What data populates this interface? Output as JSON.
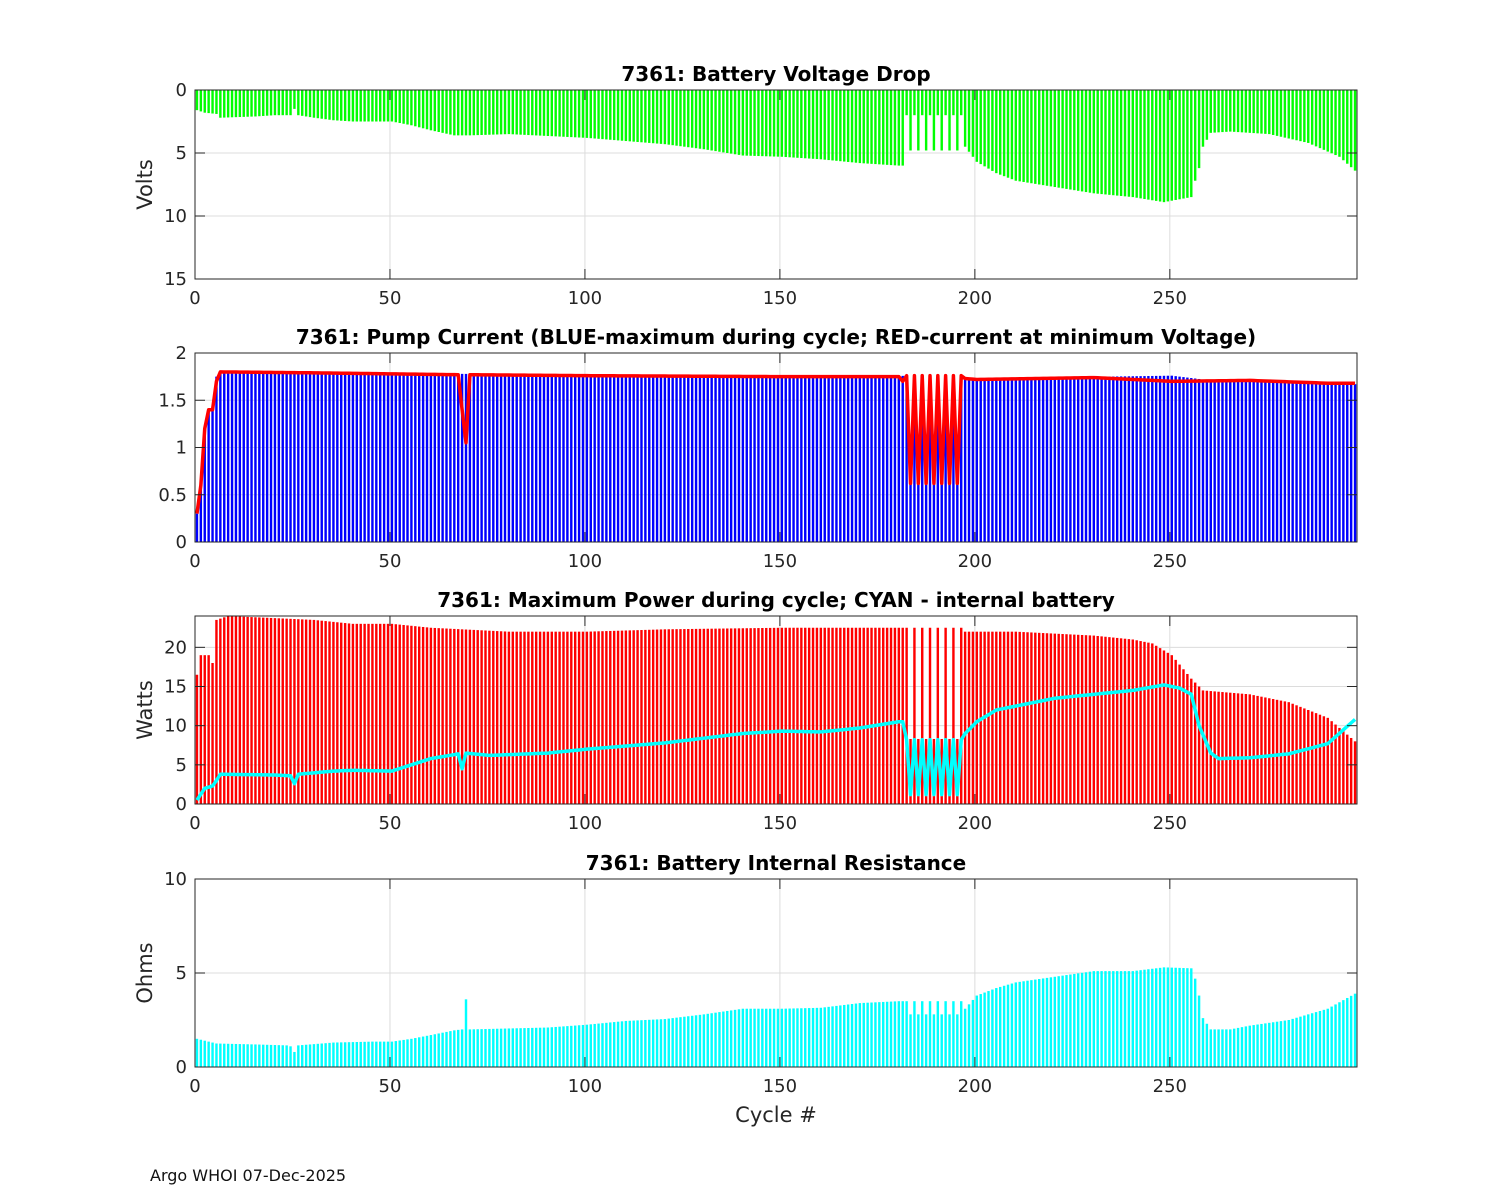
{
  "figure": {
    "footer": "Argo WHOI 07-Dec-2025",
    "xlabel": "Cycle #"
  },
  "colors": {
    "green": "#00ff00",
    "blue": "#0000ff",
    "red": "#ff0000",
    "cyan": "#00ffff"
  },
  "chart_data": [
    {
      "type": "bar",
      "title": "7361: Battery Voltage Drop",
      "ylabel": "Volts",
      "xlabel": "",
      "xlim": [
        0,
        298
      ],
      "ylim": [
        0,
        15
      ],
      "y_reversed": true,
      "xticks": [
        0,
        50,
        100,
        150,
        200,
        250
      ],
      "yticks": [
        0,
        5,
        10,
        15
      ],
      "grid": true,
      "bar_color": "#00ff00",
      "series_keypoints": {
        "name": "Voltage drop",
        "points": [
          [
            0,
            1.6
          ],
          [
            2,
            1.8
          ],
          [
            5,
            1.9
          ],
          [
            6,
            2.2
          ],
          [
            15,
            2.1
          ],
          [
            20,
            2.0
          ],
          [
            24,
            2.0
          ],
          [
            25,
            1.5
          ],
          [
            26,
            2.0
          ],
          [
            30,
            2.2
          ],
          [
            35,
            2.4
          ],
          [
            40,
            2.5
          ],
          [
            50,
            2.5
          ],
          [
            55,
            2.8
          ],
          [
            60,
            3.2
          ],
          [
            66,
            3.6
          ],
          [
            70,
            3.6
          ],
          [
            80,
            3.5
          ],
          [
            100,
            3.8
          ],
          [
            120,
            4.3
          ],
          [
            130,
            4.7
          ],
          [
            140,
            5.2
          ],
          [
            150,
            5.3
          ],
          [
            160,
            5.5
          ],
          [
            170,
            5.8
          ],
          [
            180,
            6.0
          ],
          [
            181,
            6.0
          ],
          [
            196,
            6.0
          ],
          [
            197,
            4.5
          ],
          [
            200,
            5.7
          ],
          [
            205,
            6.6
          ],
          [
            210,
            7.2
          ],
          [
            220,
            7.7
          ],
          [
            230,
            8.2
          ],
          [
            240,
            8.5
          ],
          [
            248,
            8.9
          ],
          [
            255,
            8.5
          ],
          [
            256,
            7.2
          ],
          [
            257,
            6.2
          ],
          [
            258,
            4.5
          ],
          [
            260,
            3.4
          ],
          [
            265,
            3.3
          ],
          [
            275,
            3.5
          ],
          [
            285,
            4.2
          ],
          [
            293,
            5.3
          ],
          [
            297,
            6.4
          ]
        ]
      },
      "anomalies": "cycles 182-196 alternate between about 2.0 and 4.8 V"
    },
    {
      "type": "bar+line",
      "title": "7361: Pump Current (BLUE-maximum during cycle; RED-current at minimum Voltage)",
      "ylabel": "",
      "xlabel": "",
      "xlim": [
        0,
        298
      ],
      "ylim": [
        0,
        2
      ],
      "xticks": [
        0,
        50,
        100,
        150,
        200,
        250
      ],
      "yticks": [
        0,
        0.5,
        1,
        1.5,
        2
      ],
      "grid": true,
      "series": [
        {
          "name": "maximum during cycle",
          "type": "bar",
          "color": "#0000ff",
          "keypoints": [
            [
              0,
              0.3
            ],
            [
              1,
              0.6
            ],
            [
              2,
              1.2
            ],
            [
              3,
              1.4
            ],
            [
              4,
              1.4
            ],
            [
              5,
              1.75
            ],
            [
              6,
              1.8
            ],
            [
              30,
              1.79
            ],
            [
              100,
              1.77
            ],
            [
              150,
              1.76
            ],
            [
              180,
              1.76
            ],
            [
              195,
              1.73
            ],
            [
              200,
              1.73
            ],
            [
              250,
              1.76
            ],
            [
              260,
              1.71
            ],
            [
              297,
              1.67
            ]
          ]
        },
        {
          "name": "current at minimum Voltage",
          "type": "line",
          "color": "#ff0000",
          "keypoints": [
            [
              0,
              0.3
            ],
            [
              1,
              0.6
            ],
            [
              2,
              1.2
            ],
            [
              3,
              1.4
            ],
            [
              4,
              1.4
            ],
            [
              5,
              1.7
            ],
            [
              6,
              1.8
            ],
            [
              30,
              1.79
            ],
            [
              67,
              1.77
            ],
            [
              68,
              1.4
            ],
            [
              69,
              1.05
            ],
            [
              70,
              1.77
            ],
            [
              100,
              1.76
            ],
            [
              150,
              1.75
            ],
            [
              180,
              1.75
            ],
            [
              181,
              1.7
            ],
            [
              196,
              1.7
            ],
            [
              197,
              1.73
            ],
            [
              200,
              1.72
            ],
            [
              230,
              1.74
            ],
            [
              250,
              1.7
            ],
            [
              270,
              1.71
            ],
            [
              290,
              1.68
            ],
            [
              297,
              1.68
            ]
          ]
        }
      ],
      "anomalies": "cycles 182-196 oscillate between about 0.6 and 1.76 A"
    },
    {
      "type": "bar+line",
      "title": "7361: Maximum Power during cycle; CYAN - internal battery",
      "ylabel": "Watts",
      "xlabel": "",
      "xlim": [
        0,
        298
      ],
      "ylim": [
        0,
        24
      ],
      "xticks": [
        0,
        50,
        100,
        150,
        200,
        250
      ],
      "yticks": [
        0,
        5,
        10,
        15,
        20
      ],
      "grid": true,
      "series": [
        {
          "name": "Maximum Power",
          "type": "bar",
          "color": "#ff0000",
          "keypoints": [
            [
              0,
              16.5
            ],
            [
              1,
              19
            ],
            [
              3,
              19
            ],
            [
              4,
              18
            ],
            [
              5,
              23.5
            ],
            [
              8,
              24
            ],
            [
              30,
              23.5
            ],
            [
              40,
              23
            ],
            [
              50,
              23
            ],
            [
              60,
              22.5
            ],
            [
              80,
              22
            ],
            [
              100,
              22
            ],
            [
              120,
              22.3
            ],
            [
              150,
              22.5
            ],
            [
              180,
              22.5
            ],
            [
              181,
              22.5
            ],
            [
              196,
              22.5
            ],
            [
              197,
              22
            ],
            [
              210,
              22
            ],
            [
              230,
              21.5
            ],
            [
              240,
              21
            ],
            [
              245,
              20.5
            ],
            [
              250,
              19
            ],
            [
              255,
              16
            ],
            [
              258,
              14.5
            ],
            [
              270,
              14
            ],
            [
              280,
              13
            ],
            [
              290,
              11
            ],
            [
              297,
              8
            ]
          ]
        },
        {
          "name": "internal battery",
          "type": "line",
          "color": "#00ffff",
          "keypoints": [
            [
              0,
              0.5
            ],
            [
              2,
              2
            ],
            [
              4,
              2.3
            ],
            [
              5,
              3
            ],
            [
              6,
              3.8
            ],
            [
              20,
              3.7
            ],
            [
              24,
              3.6
            ],
            [
              25,
              2.6
            ],
            [
              26,
              3.8
            ],
            [
              35,
              4.2
            ],
            [
              40,
              4.3
            ],
            [
              50,
              4.2
            ],
            [
              55,
              5
            ],
            [
              60,
              5.8
            ],
            [
              66,
              6.3
            ],
            [
              67,
              6.4
            ],
            [
              68,
              4.5
            ],
            [
              69,
              6.5
            ],
            [
              75,
              6.2
            ],
            [
              90,
              6.5
            ],
            [
              100,
              7
            ],
            [
              120,
              7.8
            ],
            [
              140,
              9
            ],
            [
              150,
              9.3
            ],
            [
              160,
              9.2
            ],
            [
              170,
              9.7
            ],
            [
              180,
              10.5
            ],
            [
              181,
              10.5
            ],
            [
              196,
              10.5
            ],
            [
              197,
              9
            ],
            [
              200,
              10.5
            ],
            [
              205,
              12
            ],
            [
              220,
              13.5
            ],
            [
              230,
              14
            ],
            [
              240,
              14.5
            ],
            [
              248,
              15.2
            ],
            [
              252,
              14.8
            ],
            [
              255,
              14
            ],
            [
              257,
              10
            ],
            [
              260,
              6.5
            ],
            [
              262,
              5.8
            ],
            [
              270,
              5.9
            ],
            [
              280,
              6.4
            ],
            [
              290,
              7.7
            ],
            [
              297,
              10.8
            ]
          ]
        }
      ],
      "anomalies": "cycles 182-196 alternate between about 1.2 and 8.5 W"
    },
    {
      "type": "bar",
      "title": "7361: Battery Internal Resistance",
      "ylabel": "Ohms",
      "xlabel": "Cycle #",
      "xlim": [
        0,
        298
      ],
      "ylim": [
        0,
        10
      ],
      "xticks": [
        0,
        50,
        100,
        150,
        200,
        250
      ],
      "yticks": [
        0,
        5,
        10
      ],
      "grid": true,
      "bar_color": "#00ffff",
      "series_keypoints": {
        "name": "Internal resistance",
        "points": [
          [
            0,
            1.5
          ],
          [
            2,
            1.4
          ],
          [
            5,
            1.25
          ],
          [
            15,
            1.2
          ],
          [
            23,
            1.15
          ],
          [
            24,
            1.1
          ],
          [
            25,
            0.8
          ],
          [
            26,
            1.15
          ],
          [
            35,
            1.3
          ],
          [
            45,
            1.35
          ],
          [
            50,
            1.35
          ],
          [
            55,
            1.5
          ],
          [
            60,
            1.7
          ],
          [
            66,
            1.95
          ],
          [
            68,
            2.0
          ],
          [
            69,
            3.6
          ],
          [
            70,
            2.0
          ],
          [
            80,
            2.05
          ],
          [
            90,
            2.1
          ],
          [
            100,
            2.25
          ],
          [
            110,
            2.45
          ],
          [
            120,
            2.55
          ],
          [
            130,
            2.8
          ],
          [
            140,
            3.1
          ],
          [
            150,
            3.1
          ],
          [
            160,
            3.15
          ],
          [
            170,
            3.4
          ],
          [
            180,
            3.5
          ],
          [
            181,
            3.5
          ],
          [
            195,
            3.3
          ],
          [
            197,
            3.1
          ],
          [
            200,
            3.8
          ],
          [
            205,
            4.2
          ],
          [
            210,
            4.5
          ],
          [
            220,
            4.8
          ],
          [
            230,
            5.1
          ],
          [
            240,
            5.1
          ],
          [
            248,
            5.3
          ],
          [
            255,
            5.25
          ],
          [
            256,
            4.7
          ],
          [
            257,
            3.8
          ],
          [
            258,
            2.6
          ],
          [
            260,
            2.0
          ],
          [
            265,
            2.0
          ],
          [
            270,
            2.2
          ],
          [
            280,
            2.5
          ],
          [
            290,
            3.1
          ],
          [
            297,
            3.9
          ]
        ]
      },
      "anomalies": "cycles 182-196 alternate between about 3.5 and 2.8 Ohms"
    }
  ]
}
